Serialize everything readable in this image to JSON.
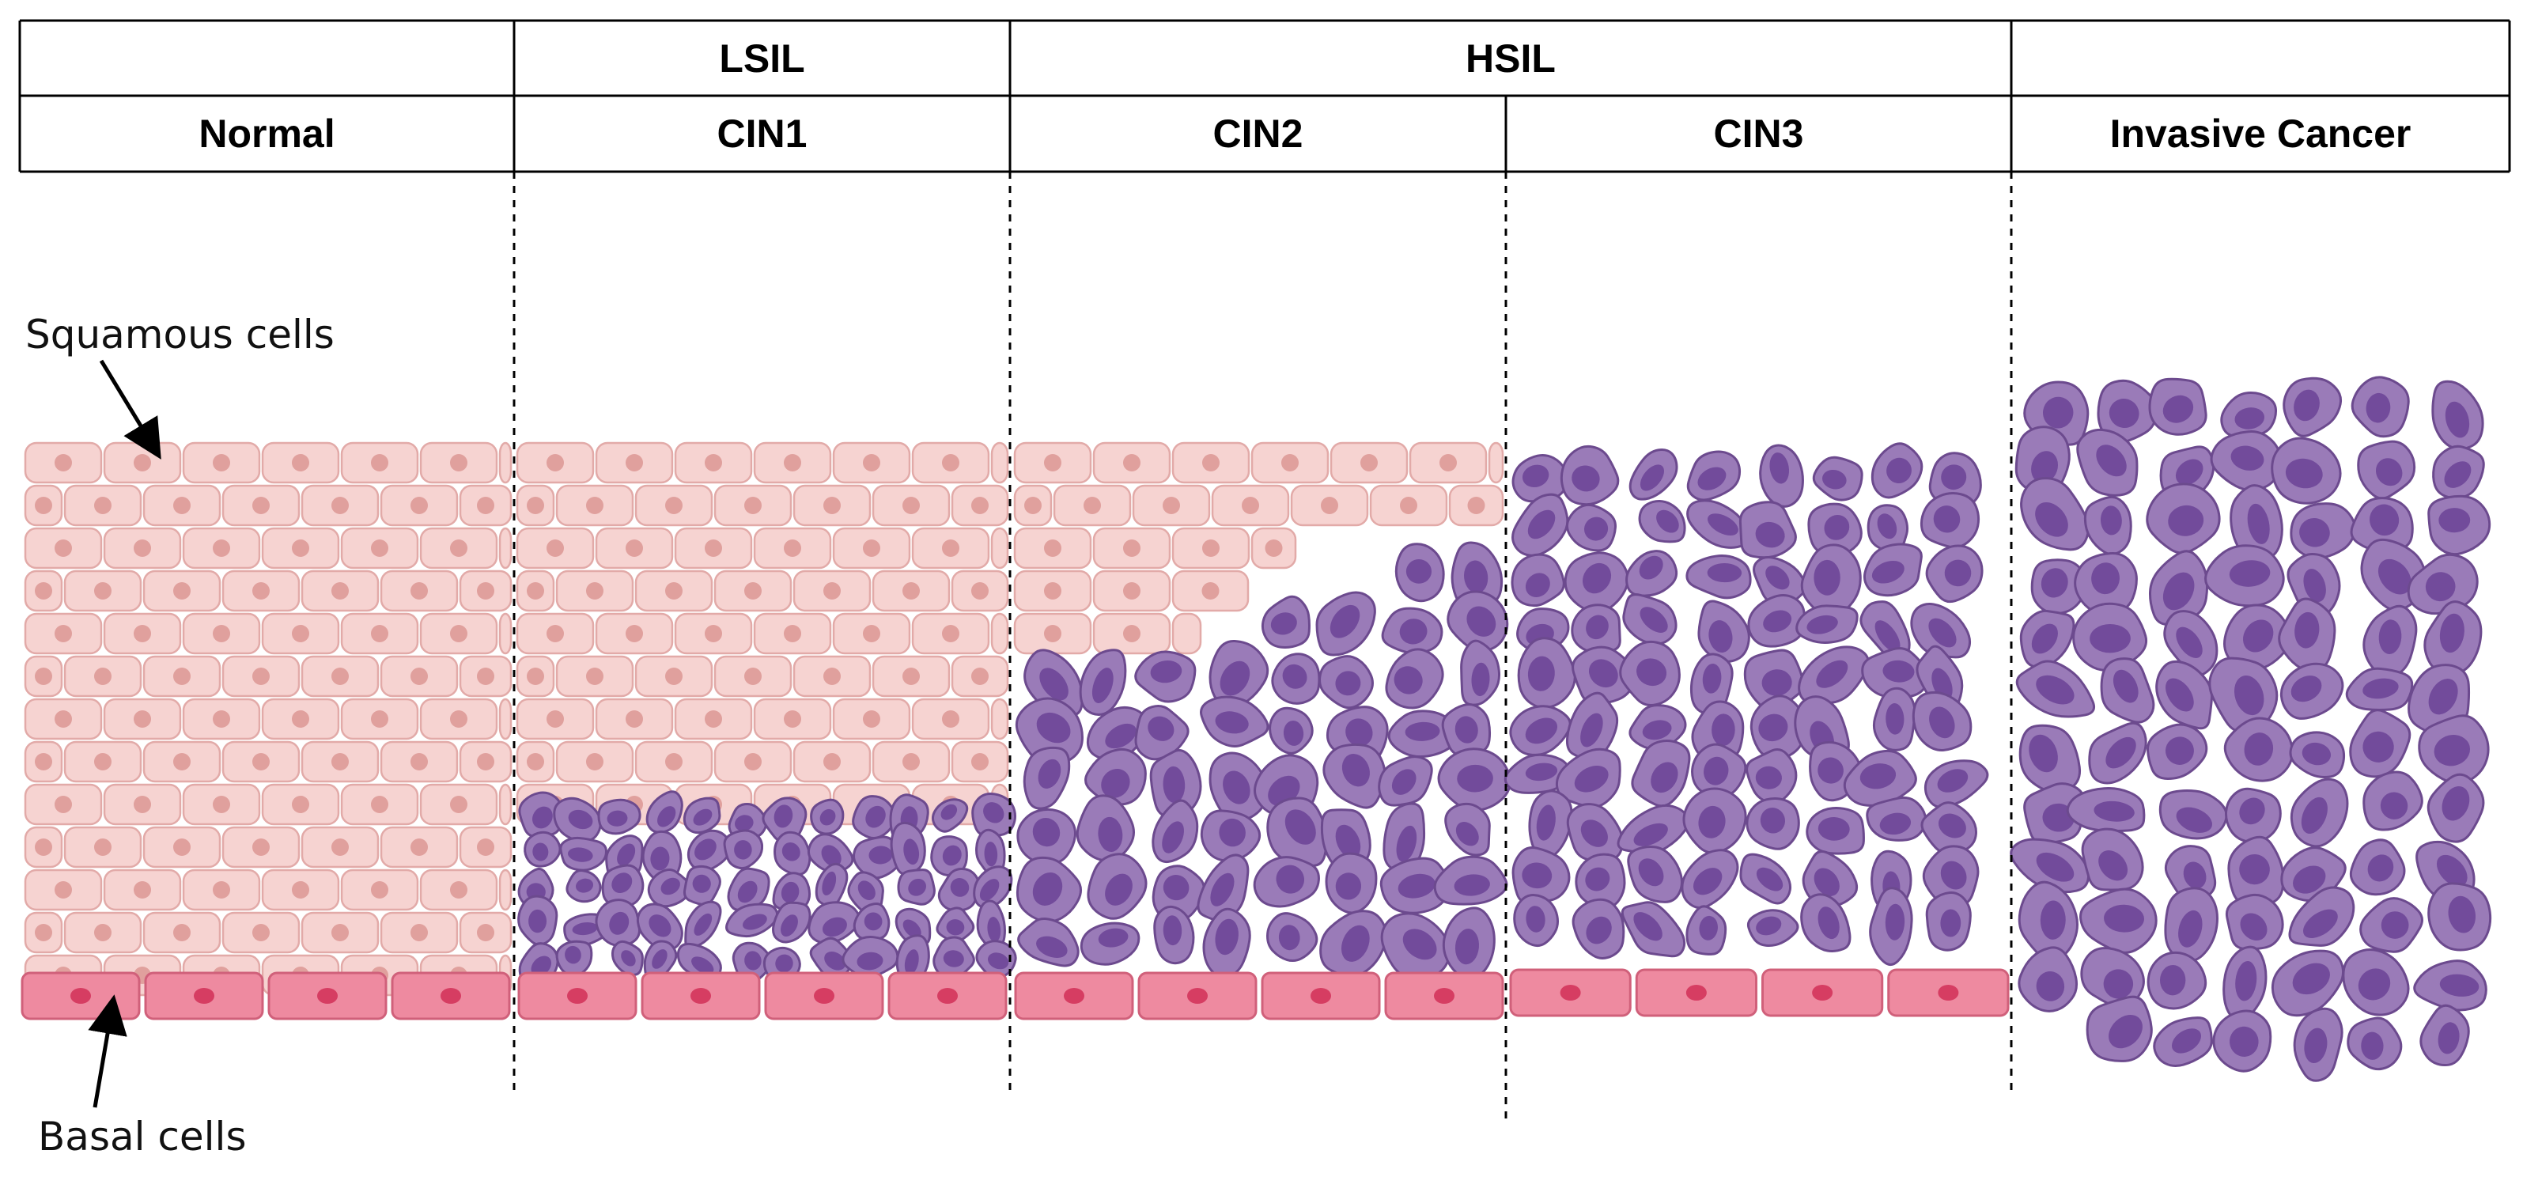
{
  "header": {
    "grades": [
      "",
      "LSIL",
      "HSIL",
      ""
    ],
    "stages": [
      "Normal",
      "CIN1",
      "CIN2",
      "CIN3",
      "Invasive Cancer"
    ]
  },
  "annotations": {
    "squamous": "Squamous cells",
    "basal": "Basal cells"
  },
  "colors": {
    "squamous_fill": "#f6d3d1",
    "squamous_stroke": "#e2aaa8",
    "squamous_nucleus": "#e0a09d",
    "basal_fill": "#ee8aa0",
    "basal_stroke": "#d0607a",
    "basal_nucleus": "#d63d62",
    "dysplastic_fill": "#9a7bb8",
    "dysplastic_stroke": "#6c4a8e",
    "dysplastic_nucleus": "#724b9b",
    "line": "#000000"
  },
  "icons": [
    "arrow-icon"
  ]
}
